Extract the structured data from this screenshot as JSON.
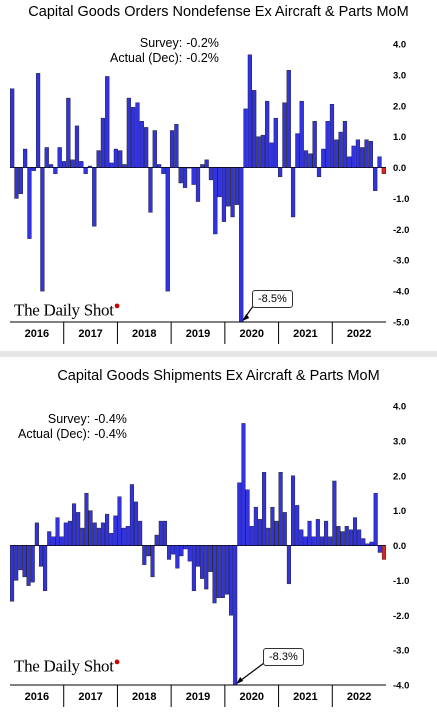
{
  "chart_data": [
    {
      "type": "bar",
      "title": "Capital Goods Orders Nondefense Ex Aircraft & Parts MoM",
      "survey_label": "Survey:",
      "survey_value": "-0.2%",
      "actual_label": "Actual (Dec):",
      "actual_value": "-0.2%",
      "annotation": "-8.5%",
      "logo": "The Daily Shot",
      "ylim": [
        -5.0,
        4.0
      ],
      "yticks": [
        "4.0",
        "3.0",
        "2.0",
        "1.0",
        "0.0",
        "-1.0",
        "-2.0",
        "-3.0",
        "-4.0",
        "-5.0"
      ],
      "ytick_values": [
        4,
        3,
        2,
        1,
        0,
        -1,
        -2,
        -3,
        -4,
        -5
      ],
      "x_labels": [
        "2016",
        "2017",
        "2018",
        "2019",
        "2020",
        "2021",
        "2022"
      ],
      "grid": false,
      "bar_color": "#3333dd",
      "last_bar_color": "#dd2222",
      "values": [
        2.55,
        -1.0,
        -0.85,
        0.6,
        -2.3,
        -0.1,
        3.05,
        -4.0,
        0.65,
        0.1,
        -0.2,
        0.65,
        0.2,
        2.25,
        0.25,
        1.35,
        0.2,
        -0.2,
        0.05,
        -1.9,
        0.55,
        1.6,
        2.95,
        0.15,
        0.6,
        0.55,
        0.1,
        2.25,
        1.95,
        2.1,
        1.5,
        1.3,
        -1.45,
        1.2,
        0.1,
        -0.2,
        -4.0,
        1.2,
        1.4,
        -0.5,
        -0.65,
        0.0,
        -0.55,
        -1.1,
        0.1,
        0.25,
        -0.4,
        -2.15,
        -0.95,
        -1.75,
        -1.25,
        -1.6,
        -1.2,
        -5.0,
        1.9,
        3.65,
        2.5,
        1.0,
        1.05,
        2.15,
        0.8,
        1.6,
        -0.3,
        2.1,
        3.15,
        -1.6,
        1.1,
        2.15,
        0.55,
        0.45,
        1.5,
        -0.3,
        0.6,
        1.5,
        2.05,
        0.9,
        1.15,
        1.5,
        0.35,
        0.7,
        0.9,
        0.65,
        0.9,
        0.85,
        -0.75,
        0.35,
        -0.2
      ]
    },
    {
      "type": "bar",
      "title": "Capital Goods Shipments Ex Aircraft & Parts MoM",
      "survey_label": "Survey:",
      "survey_value": "-0.4%",
      "actual_label": "Actual (Dec):",
      "actual_value": "-0.4%",
      "annotation": "-8.3%",
      "logo": "The Daily Shot",
      "ylim": [
        -4.0,
        4.0
      ],
      "yticks": [
        "4.0",
        "3.0",
        "2.0",
        "1.0",
        "0.0",
        "-1.0",
        "-2.0",
        "-3.0",
        "-4.0"
      ],
      "ytick_values": [
        4,
        3,
        2,
        1,
        0,
        -1,
        -2,
        -3,
        -4
      ],
      "x_labels": [
        "2016",
        "2017",
        "2018",
        "2019",
        "2020",
        "2021",
        "2022"
      ],
      "grid": false,
      "bar_color": "#3333dd",
      "last_bar_color": "#dd2222",
      "values": [
        -1.6,
        -1.0,
        -0.7,
        -0.9,
        -1.15,
        -1.05,
        0.65,
        -0.6,
        -1.3,
        0.4,
        0.25,
        0.8,
        0.25,
        0.65,
        0.7,
        1.2,
        0.95,
        0.5,
        1.5,
        1.0,
        0.65,
        0.5,
        0.65,
        0.9,
        0.35,
        0.85,
        1.4,
        0.5,
        0.55,
        1.75,
        1.25,
        0.7,
        -0.55,
        -0.3,
        -0.9,
        0.3,
        0.7,
        0.7,
        -0.4,
        -0.25,
        -0.65,
        -0.3,
        -0.1,
        -0.45,
        -1.3,
        -0.6,
        -0.95,
        -1.25,
        -0.75,
        -1.65,
        -1.5,
        -1.5,
        -1.4,
        -2.0,
        -4.0,
        1.8,
        3.5,
        1.6,
        0.55,
        1.1,
        0.75,
        2.1,
        0.5,
        1.1,
        0.7,
        2.1,
        0.95,
        -1.1,
        2.0,
        1.15,
        0.45,
        0.25,
        0.7,
        0.25,
        0.75,
        0.25,
        0.7,
        0.25,
        1.85,
        0.55,
        0.4,
        0.55,
        0.45,
        0.8,
        0.45,
        0.2,
        0.05,
        0.1,
        1.5,
        -0.2,
        -0.4
      ]
    }
  ]
}
